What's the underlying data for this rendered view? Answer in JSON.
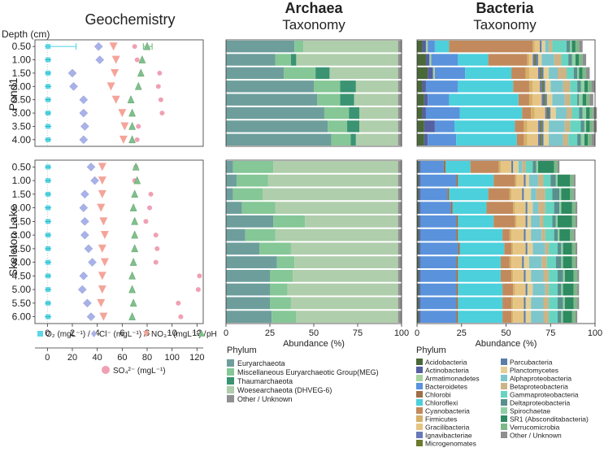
{
  "panels": {
    "geo": {
      "title": "Geochemistry"
    },
    "archaea": {
      "title": "Archaea",
      "subtitle": "Taxonomy"
    },
    "bacteria": {
      "title": "Bacteria",
      "subtitle": "Taxonomy"
    }
  },
  "depth_header": "Depth (cm)",
  "groups": [
    {
      "name": "Pond1",
      "depths": [
        "0.50",
        "1.00",
        "1.50",
        "2.00",
        "2.50",
        "3.00",
        "3.50",
        "4.00"
      ]
    },
    {
      "name": "Skeleton Lake",
      "depths": [
        "0.50",
        "1.00",
        "1.50",
        "2.00",
        "2.50",
        "3.00",
        "3.50",
        "4.00",
        "4.50",
        "5.00",
        "5.50",
        "6.00"
      ]
    }
  ],
  "geo_axes": {
    "top_ticks": [
      "0",
      "2",
      "4",
      "6",
      "8",
      "10",
      "12"
    ],
    "top_legend": [
      {
        "key": "o2",
        "label": "O₂ (mgL⁻¹) /"
      },
      {
        "key": "cl",
        "label": "Cl⁻ (mgL⁻¹) /"
      },
      {
        "key": "no3",
        "label": "NO₃⁻ (mgL⁻¹) /"
      },
      {
        "key": "ph",
        "label": "pH"
      }
    ],
    "bottom_ticks": [
      "0",
      "20",
      "40",
      "60",
      "80",
      "100",
      "120"
    ],
    "bottom_label": "SO₄²⁻ (mgL⁻¹)"
  },
  "abundance_axis": {
    "ticks": [
      "0",
      "25",
      "50",
      "75",
      "100"
    ],
    "label": "Abundance (%)"
  },
  "chart_data": [
    {
      "type": "scatter",
      "title": "Geochemistry",
      "xlim": [
        -1,
        12.5
      ],
      "so4_xlim": [
        -10,
        125
      ],
      "series_order": [
        "o2",
        "cl",
        "no3",
        "ph",
        "so4"
      ],
      "colors": {
        "o2": "#5dd6e6",
        "cl": "#a8b2e8",
        "no3": "#f4a49a",
        "ph": "#7fc08a",
        "so4": "#f0a0b4"
      },
      "o2_error": {
        "group": 0,
        "row": 0,
        "low": -0.1,
        "high": 2.3
      },
      "ph_error": {
        "group": 0,
        "row": 0,
        "low": 7.7,
        "high": 8.4
      },
      "series": {
        "o2": [
          [
            0.05,
            0.05,
            0.05,
            0.05,
            0.05,
            0.05,
            0.05,
            0.05
          ],
          [
            0.05,
            0.05,
            0.05,
            0.05,
            0.05,
            0.05,
            0.05,
            0.05,
            0.05,
            0.05,
            0.05,
            0.05
          ]
        ],
        "cl": [
          [
            4.1,
            4.2,
            2.0,
            2.1,
            2.9,
            2.9,
            3.0,
            2.9
          ],
          [
            3.5,
            3.8,
            3.0,
            2.9,
            3.0,
            3.0,
            3.3,
            3.6,
            2.9,
            2.8,
            3.2,
            3.5
          ]
        ],
        "no3": [
          [
            5.3,
            5.5,
            5.4,
            5.1,
            5.5,
            6.0,
            6.2,
            6.1
          ],
          [
            4.4,
            4.4,
            4.4,
            4.3,
            4.5,
            4.6,
            4.4,
            4.6,
            4.4,
            4.4,
            4.3,
            4.5
          ]
        ],
        "ph": [
          [
            8.0,
            7.6,
            7.5,
            7.3,
            6.7,
            6.8,
            6.8,
            6.8
          ],
          [
            7.1,
            7.2,
            7.0,
            6.9,
            7.0,
            7.0,
            7.0,
            6.9,
            6.8,
            6.8,
            6.9,
            6.8
          ]
        ],
        "so4": [
          [
            70,
            72,
            90,
            89,
            91,
            92,
            73,
            72
          ],
          [
            71,
            70,
            83,
            82,
            79,
            87,
            88,
            87,
            122,
            121,
            105,
            107
          ]
        ]
      }
    },
    {
      "type": "bar",
      "stacked": true,
      "orientation": "horizontal",
      "title": "Archaea Taxonomy",
      "xlabel": "Abundance (%)",
      "xlim": [
        0,
        100
      ],
      "phyla": [
        "Euryarchaeota",
        "Miscellaneous Euryarchaeotic Group(MEG)",
        "Thaumarchaeota",
        "Woesearchaeota (DHVEG-6)",
        "Other / Unknown"
      ],
      "colors": [
        "#6d9e9c",
        "#85c796",
        "#3a9372",
        "#afceab",
        "#909092"
      ],
      "values": [
        [
          [
            39,
            5,
            0,
            54,
            2
          ],
          [
            28,
            9,
            3,
            58,
            2
          ],
          [
            33,
            18,
            8,
            39,
            2
          ],
          [
            50,
            15,
            9,
            24,
            2
          ],
          [
            52,
            13,
            8,
            25,
            2
          ],
          [
            56,
            14,
            6,
            22,
            2
          ],
          [
            58,
            11,
            7,
            22,
            2
          ],
          [
            60,
            11,
            3,
            24,
            2
          ]
        ],
        [
          [
            4,
            23,
            0,
            71,
            2
          ],
          [
            6,
            18,
            0,
            74,
            2
          ],
          [
            4,
            17,
            0,
            77,
            2
          ],
          [
            9,
            19,
            0,
            70,
            2
          ],
          [
            27,
            18,
            0,
            53,
            2
          ],
          [
            11,
            17,
            0,
            70,
            2
          ],
          [
            19,
            18,
            0,
            61,
            2
          ],
          [
            29,
            10,
            0,
            59,
            2
          ],
          [
            25,
            13,
            0,
            60,
            2
          ],
          [
            25,
            10,
            0,
            63,
            2
          ],
          [
            25,
            12,
            0,
            61,
            2
          ],
          [
            26,
            14,
            0,
            58,
            2
          ]
        ]
      ]
    },
    {
      "type": "bar",
      "stacked": true,
      "orientation": "horizontal",
      "title": "Bacteria Taxonomy",
      "xlabel": "Abundance (%)",
      "xlim": [
        0,
        100
      ],
      "phyla": [
        "Acidobacteria",
        "Actinobacteria",
        "Armatimonadetes",
        "Bacteroidetes",
        "Chlorobi",
        "Chloroflexi",
        "Cyanobacteria",
        "Firmicutes",
        "Gracilibacteria",
        "Ignavibacteriae",
        "Microgenomates",
        "Parcubacteria",
        "Planctomycetes",
        "Alphaproteobacteria",
        "Betaproteobacteria",
        "Gammaproteobacteria",
        "Deltaproteobacteria",
        "Spirochaetae",
        "SR1 (Absconditabacteria)",
        "Verrucomicrobia",
        "Other / Unknown"
      ],
      "colors": [
        "#4a6838",
        "#5560a0",
        "#a8d2a0",
        "#5a92dc",
        "#a06e48",
        "#4bd0dc",
        "#c28a5c",
        "#d4b068",
        "#e6c584",
        "#6878b8",
        "#6b7a2e",
        "#5a7ca8",
        "#e4cf96",
        "#7cc6cc",
        "#cdb386",
        "#66d4c0",
        "#58908e",
        "#8ed0a4",
        "#2e8a60",
        "#7cb888",
        "#8e8e90"
      ],
      "values": [
        [
          [
            3,
            2,
            1,
            4,
            0,
            8,
            47,
            1,
            3,
            0,
            0,
            1,
            2,
            2,
            2,
            8,
            2,
            1,
            2,
            2,
            2
          ],
          [
            5,
            2,
            1,
            15,
            0,
            17,
            22,
            1,
            2,
            1,
            1,
            1,
            2,
            7,
            4,
            4,
            2,
            2,
            2,
            2,
            2
          ],
          [
            6,
            3,
            1,
            17,
            0,
            26,
            8,
            2,
            5,
            1,
            1,
            1,
            3,
            5,
            5,
            4,
            2,
            1,
            2,
            2,
            2
          ],
          [
            3,
            2,
            0,
            18,
            0,
            31,
            9,
            2,
            4,
            1,
            1,
            1,
            3,
            7,
            4,
            4,
            2,
            2,
            2,
            2,
            2
          ],
          [
            4,
            2,
            0,
            12,
            0,
            39,
            6,
            2,
            5,
            1,
            1,
            1,
            3,
            7,
            3,
            4,
            1,
            2,
            2,
            2,
            2
          ],
          [
            3,
            2,
            0,
            19,
            0,
            35,
            5,
            2,
            6,
            1,
            1,
            1,
            3,
            6,
            3,
            4,
            2,
            2,
            2,
            2,
            2
          ],
          [
            4,
            6,
            0,
            11,
            0,
            34,
            5,
            2,
            6,
            1,
            1,
            1,
            3,
            9,
            3,
            6,
            2,
            1,
            2,
            2,
            2
          ],
          [
            4,
            2,
            0,
            16,
            0,
            34,
            4,
            2,
            6,
            1,
            1,
            1,
            3,
            8,
            3,
            5,
            2,
            2,
            2,
            2,
            2
          ]
        ],
        [
          [
            1,
            1,
            0,
            13,
            1,
            14,
            16,
            1,
            6,
            0,
            0,
            1,
            3,
            2,
            2,
            4,
            2,
            1,
            9,
            2,
            1
          ],
          [
            1,
            1,
            0,
            20,
            1,
            20,
            12,
            1,
            4,
            0,
            0,
            1,
            2,
            5,
            3,
            4,
            3,
            1,
            7,
            2,
            1
          ],
          [
            1,
            1,
            0,
            15,
            1,
            22,
            12,
            1,
            6,
            0,
            0,
            1,
            4,
            3,
            5,
            4,
            4,
            1,
            5,
            2,
            1
          ],
          [
            1,
            1,
            0,
            17,
            1,
            19,
            15,
            1,
            6,
            0,
            0,
            1,
            3,
            3,
            4,
            5,
            3,
            1,
            6,
            2,
            1
          ],
          [
            1,
            1,
            0,
            20,
            1,
            20,
            12,
            1,
            5,
            0,
            0,
            1,
            2,
            5,
            2,
            5,
            2,
            1,
            8,
            2,
            1
          ],
          [
            1,
            1,
            0,
            20,
            1,
            25,
            4,
            1,
            7,
            0,
            0,
            1,
            3,
            6,
            2,
            5,
            2,
            1,
            6,
            2,
            1
          ],
          [
            1,
            1,
            0,
            21,
            1,
            25,
            4,
            1,
            7,
            0,
            0,
            1,
            3,
            7,
            2,
            5,
            2,
            1,
            5,
            2,
            1
          ],
          [
            1,
            1,
            0,
            20,
            1,
            24,
            5,
            1,
            6,
            0,
            0,
            1,
            3,
            7,
            3,
            5,
            3,
            1,
            5,
            2,
            1
          ],
          [
            1,
            1,
            0,
            20,
            1,
            24,
            6,
            1,
            6,
            0,
            0,
            1,
            3,
            7,
            3,
            5,
            3,
            1,
            5,
            2,
            1
          ],
          [
            1,
            1,
            0,
            20,
            1,
            25,
            6,
            1,
            6,
            0,
            0,
            1,
            3,
            7,
            2,
            5,
            2,
            1,
            6,
            2,
            1
          ],
          [
            1,
            1,
            0,
            20,
            1,
            25,
            5,
            1,
            6,
            0,
            0,
            1,
            3,
            7,
            3,
            5,
            3,
            1,
            5,
            2,
            1
          ],
          [
            1,
            1,
            0,
            20,
            1,
            25,
            5,
            1,
            6,
            0,
            0,
            1,
            3,
            7,
            3,
            5,
            2,
            1,
            5,
            2,
            1
          ]
        ]
      ]
    }
  ],
  "archaea_legend": {
    "title": "Phylum"
  },
  "bacteria_legend": {
    "title": "Phylum"
  }
}
